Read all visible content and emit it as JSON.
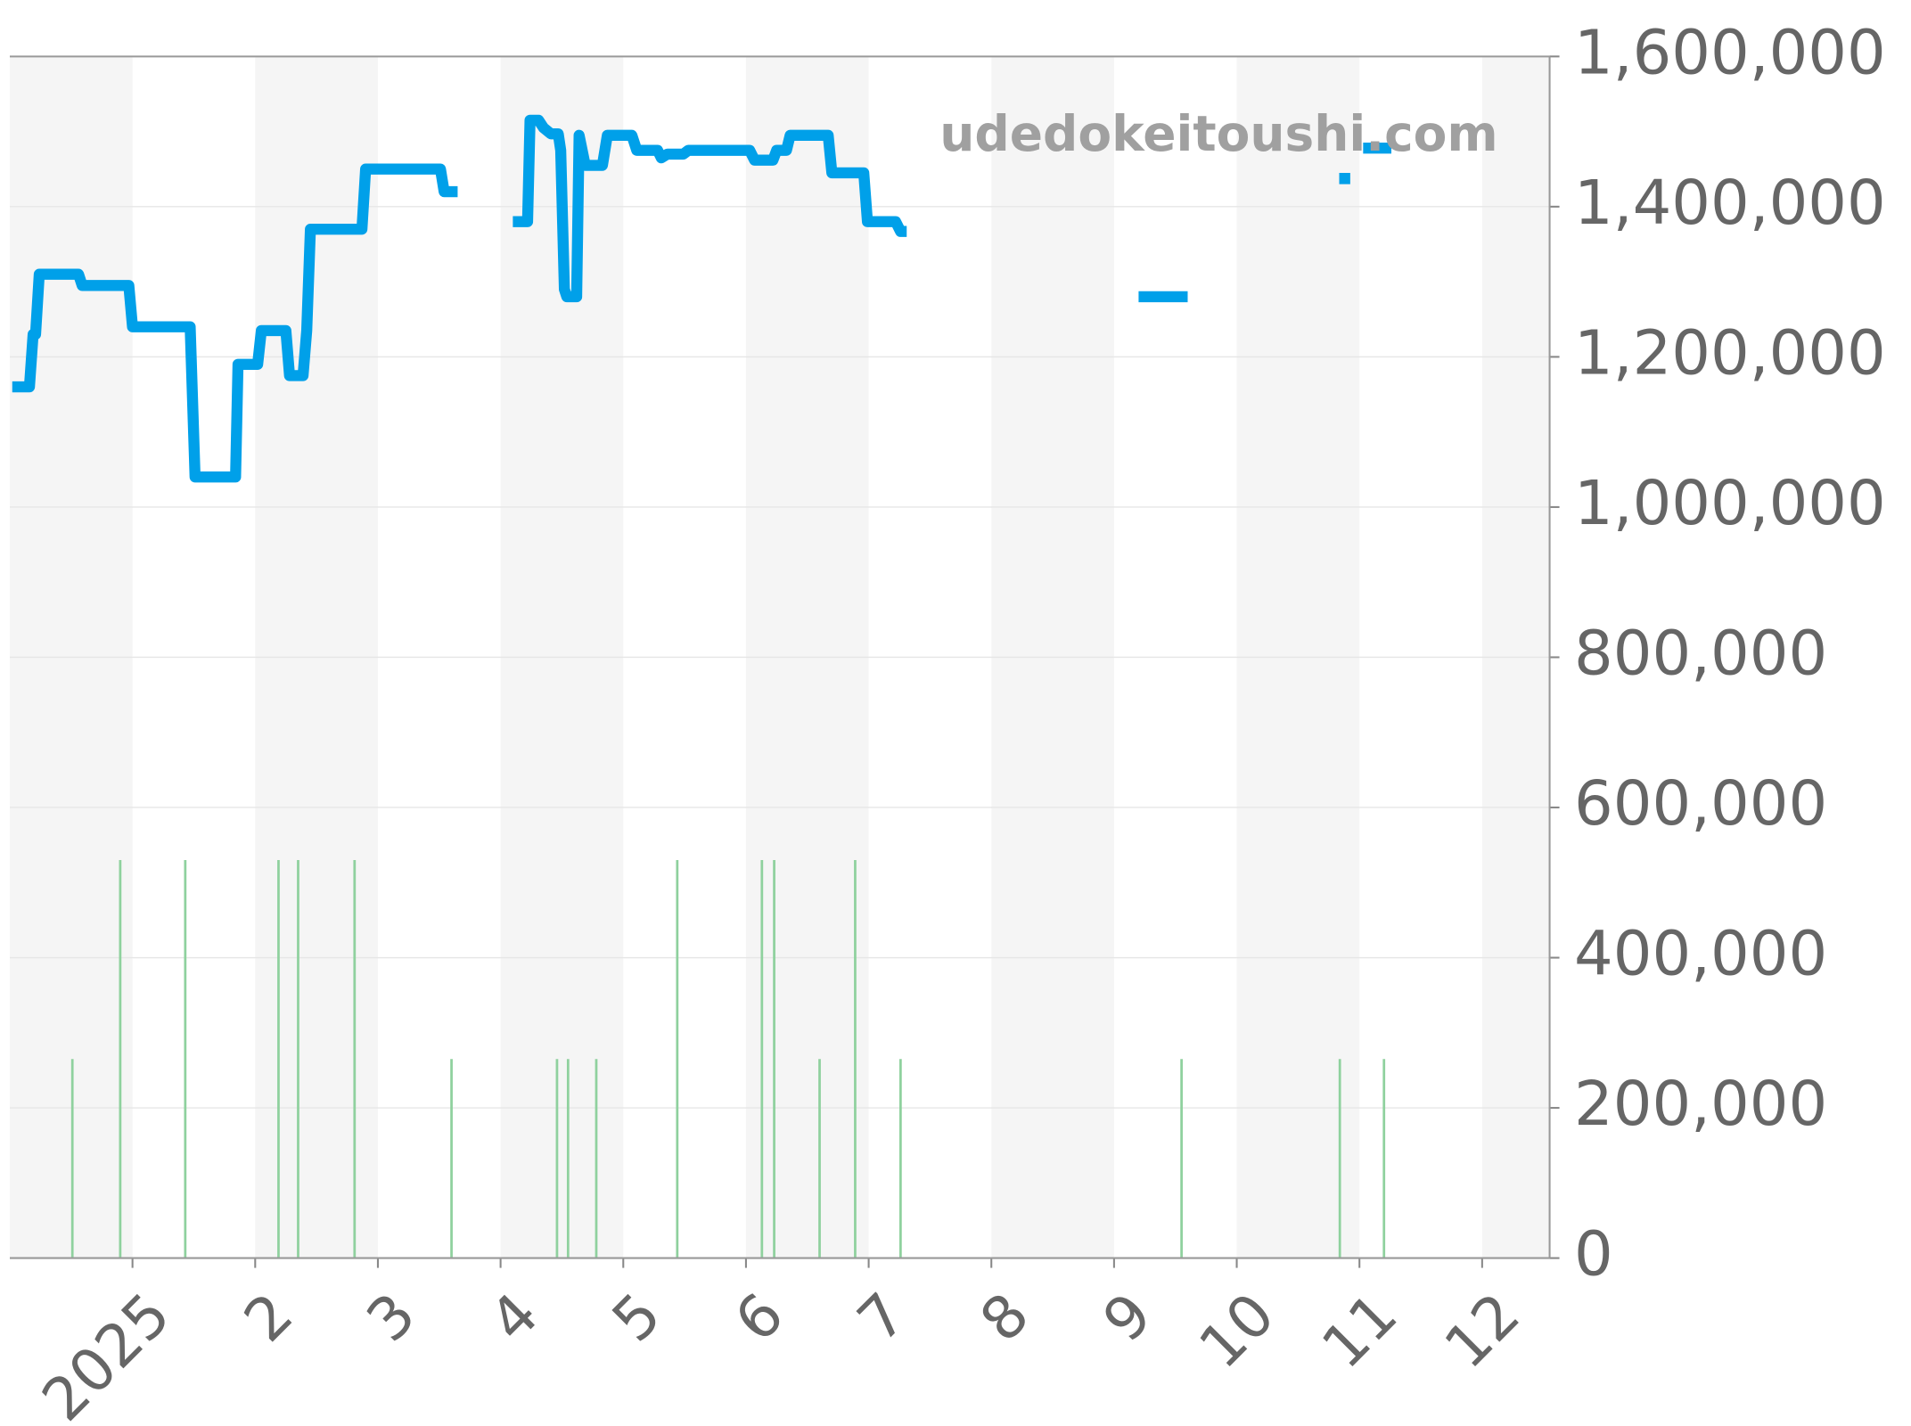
{
  "chart_data": {
    "type": "line",
    "watermark": "udedokeitoushi.com",
    "xlim": [
      0,
      12.55
    ],
    "xticks": [
      {
        "value": 1,
        "label": "2025"
      },
      2,
      3,
      4,
      5,
      6,
      7,
      8,
      9,
      10,
      11,
      12
    ],
    "ylim": [
      0,
      1600000
    ],
    "yticks": [
      0,
      {
        "value": 200000,
        "label": "200,000"
      },
      {
        "value": 400000,
        "label": "400,000"
      },
      {
        "value": 600000,
        "label": "600,000"
      },
      {
        "value": 800000,
        "label": "800,000"
      },
      {
        "value": 1000000,
        "label": "1,000,000"
      },
      {
        "value": 1200000,
        "label": "1,200,000"
      },
      {
        "value": 1400000,
        "label": "1,400,000"
      },
      {
        "value": 1600000,
        "label": "1,600,000"
      }
    ],
    "grid": true,
    "series": [
      {
        "type": "bar",
        "color": "#8fd19e",
        "x": [
          0.51,
          0.9,
          1.43,
          2.19,
          2.35,
          2.81,
          3.6,
          4.46,
          4.55,
          4.78,
          5.44,
          6.13,
          6.23,
          6.6,
          6.89,
          7.26,
          9.55,
          10.84,
          11.2
        ],
        "values": [
          265000,
          530000,
          530000,
          530000,
          530000,
          530000,
          265000,
          265000,
          265000,
          265000,
          530000,
          530000,
          530000,
          265000,
          530000,
          265000,
          265000,
          265000,
          265000
        ]
      },
      {
        "type": "line",
        "color": "#00a0e9",
        "x": [
          0.02,
          0.16,
          0.19,
          0.21,
          0.24,
          0.56,
          0.59,
          0.97,
          1.0,
          1.47,
          1.51,
          1.84,
          1.86,
          2.02,
          2.05,
          2.25,
          2.28,
          2.39,
          2.42,
          2.45,
          2.87,
          2.9,
          3.51,
          3.54,
          3.65,
          3.8,
          4.1,
          4.22,
          4.24,
          4.31,
          4.35,
          4.41,
          4.47,
          4.49,
          4.52,
          4.54,
          4.62,
          4.64,
          4.69,
          4.83,
          4.87,
          5.07,
          5.11,
          5.28,
          5.31,
          5.36,
          5.49,
          5.53,
          6.03,
          6.07,
          6.22,
          6.25,
          6.33,
          6.36,
          6.67,
          6.7,
          6.96,
          6.99,
          7.22,
          7.26,
          7.31,
          8.0,
          9.2,
          9.6,
          10.0,
          10.88,
          10.88,
          10.95,
          11.03,
          11.26
        ],
        "values": [
          1160000,
          1160000,
          1230000,
          1230000,
          1310000,
          1310000,
          1295000,
          1295000,
          1240000,
          1240000,
          1040000,
          1040000,
          1190000,
          1190000,
          1235000,
          1235000,
          1175000,
          1175000,
          1235000,
          1370000,
          1370000,
          1450000,
          1450000,
          1420000,
          1420000,
          null,
          1380000,
          1380000,
          1515000,
          1515000,
          1505000,
          1497000,
          1497000,
          1475000,
          1290000,
          1280000,
          1280000,
          1495000,
          1455000,
          1455000,
          1495000,
          1495000,
          1475000,
          1475000,
          1465000,
          1470000,
          1470000,
          1475000,
          1475000,
          1462000,
          1462000,
          1475000,
          1475000,
          1495000,
          1495000,
          1445000,
          1445000,
          1380000,
          1380000,
          1367000,
          1367000,
          null,
          1280000,
          1280000,
          null,
          1445000,
          1430000,
          null,
          1478000,
          1478000
        ]
      }
    ]
  }
}
